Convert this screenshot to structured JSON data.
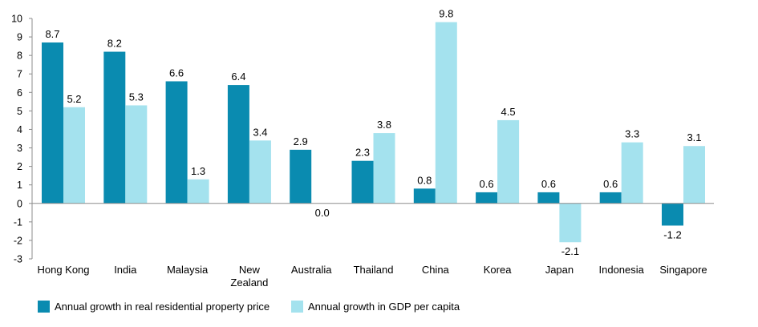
{
  "chart_data": {
    "type": "bar",
    "categories": [
      [
        "Hong Kong"
      ],
      [
        "India"
      ],
      [
        "Malaysia"
      ],
      [
        "New",
        "Zealand"
      ],
      [
        "Australia"
      ],
      [
        "Thailand"
      ],
      [
        "China"
      ],
      [
        "Korea"
      ],
      [
        "Japan"
      ],
      [
        "Indonesia"
      ],
      [
        "Singapore"
      ]
    ],
    "series": [
      {
        "name": "Annual growth in real residential property price",
        "color": "#0a8bb0",
        "values": [
          8.7,
          8.2,
          6.6,
          6.4,
          2.9,
          2.3,
          0.8,
          0.6,
          0.6,
          0.6,
          -1.2
        ],
        "labels": [
          "8.7",
          "8.2",
          "6.6",
          "6.4",
          "2.9",
          "2.3",
          "0.8",
          "0.6",
          "0.6",
          "0.6",
          "-1.2"
        ]
      },
      {
        "name": "Annual growth in GDP per capita",
        "color": "#a4e2ee",
        "values": [
          5.2,
          5.3,
          1.3,
          3.4,
          0.0,
          3.8,
          9.8,
          4.5,
          -2.1,
          3.3,
          3.1
        ],
        "labels": [
          "5.2",
          "5.3",
          "1.3",
          "3.4",
          "0.0",
          "3.8",
          "9.8",
          "4.5",
          "-2.1",
          "3.3",
          "3.1"
        ]
      }
    ],
    "ylim": [
      -3,
      10
    ],
    "yticks": [
      "-3",
      "-2",
      "-1",
      "0",
      "1",
      "2",
      "3",
      "4",
      "5",
      "6",
      "7",
      "8",
      "9",
      "10"
    ],
    "grid": false,
    "legend_position": "bottom-left"
  }
}
